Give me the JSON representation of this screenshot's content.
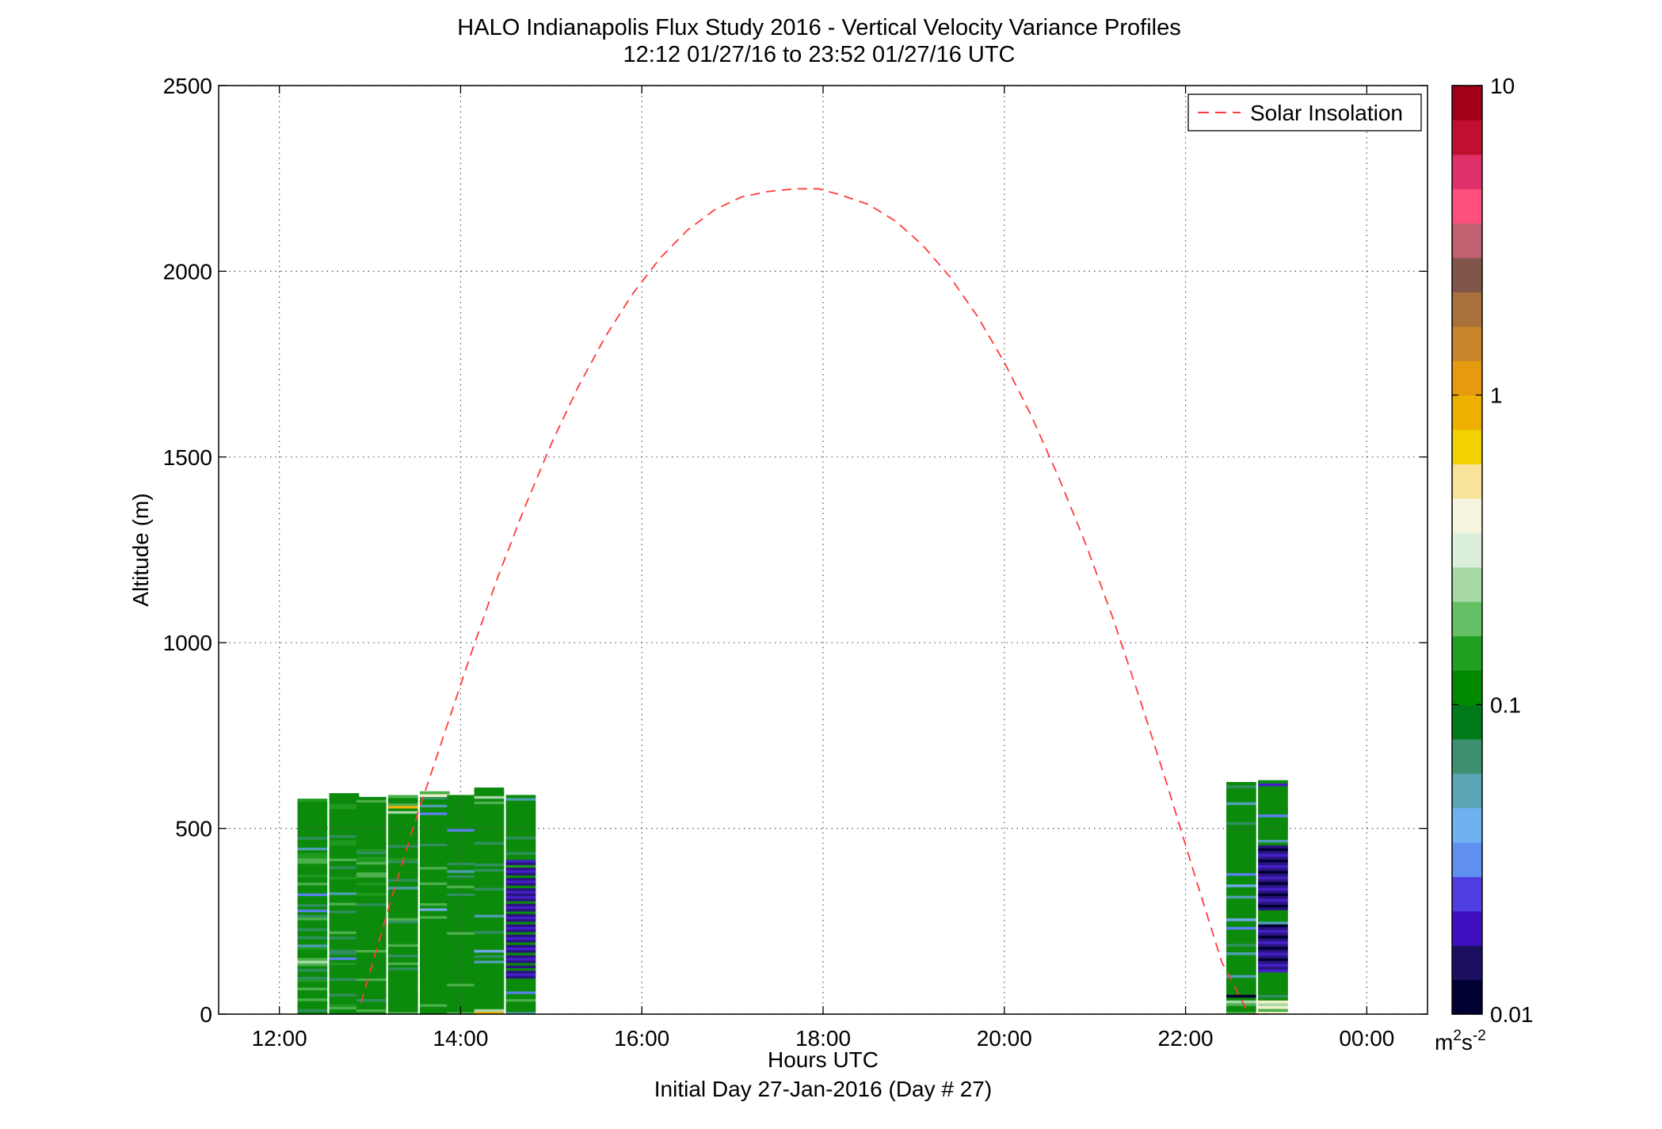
{
  "chart_data": {
    "type": "heatmap",
    "title": "HALO Indianapolis Flux Study 2016 - Vertical Velocity Variance Profiles",
    "subtitle": "12:12 01/27/16 to 23:52 01/27/16  UTC",
    "xlabel": "Hours UTC",
    "xlabel2": "Initial Day 27-Jan-2016 (Day # 27)",
    "ylabel": "Altitude (m)",
    "xlim": [
      11.33,
      24.67
    ],
    "ylim": [
      0,
      2500
    ],
    "x_ticks": [
      12,
      14,
      16,
      18,
      20,
      22,
      24
    ],
    "x_tick_labels": [
      "12:00",
      "14:00",
      "16:00",
      "18:00",
      "20:00",
      "22:00",
      "00:00"
    ],
    "y_ticks": [
      0,
      500,
      1000,
      1500,
      2000,
      2500
    ],
    "y_tick_labels": [
      "0",
      "500",
      "1000",
      "1500",
      "2000",
      "2500"
    ],
    "grid": true,
    "legend": {
      "position": "top-right",
      "entries": [
        "Solar Insolation"
      ]
    },
    "colorbar": {
      "scale": "log",
      "min": 0.01,
      "max": 10,
      "ticks": [
        0.01,
        0.1,
        1,
        10
      ],
      "tick_labels": [
        "0.01",
        "0.1",
        "1",
        "10"
      ],
      "unit": "m",
      "unit_sup1": "2",
      "unit_mid": "s",
      "unit_sup2": "-2",
      "colors": [
        "#000033",
        "#1b1060",
        "#3f10c0",
        "#4f3fe0",
        "#5f8ff0",
        "#6fb2f2",
        "#5aa5b5",
        "#3d8f70",
        "#007a1a",
        "#008a00",
        "#20a020",
        "#65bf65",
        "#a6d9a6",
        "#dcefdc",
        "#f5f5e0",
        "#f7e39a",
        "#f2d100",
        "#eeb000",
        "#e69a10",
        "#c8852a",
        "#a8703a",
        "#80564a",
        "#c06070",
        "#ff4f7f",
        "#e0306a",
        "#c01030",
        "#a00018"
      ]
    },
    "series": [
      {
        "name": "Solar Insolation",
        "style": "dashed",
        "color": "#ff3b3b",
        "x": [
          12.9,
          13.2,
          13.5,
          13.8,
          14.1,
          14.4,
          14.7,
          15.0,
          15.3,
          15.6,
          15.9,
          16.2,
          16.5,
          16.8,
          17.1,
          17.4,
          17.7,
          17.95,
          18.2,
          18.5,
          18.8,
          19.1,
          19.4,
          19.7,
          20.0,
          20.3,
          20.6,
          20.9,
          21.2,
          21.5,
          21.8,
          22.1,
          22.4,
          22.7,
          22.9
        ],
        "y": [
          30,
          280,
          520,
          740,
          960,
          1170,
          1360,
          1535,
          1690,
          1825,
          1940,
          2035,
          2110,
          2165,
          2200,
          2215,
          2222,
          2222,
          2205,
          2180,
          2135,
          2070,
          1985,
          1880,
          1755,
          1610,
          1445,
          1265,
          1065,
          845,
          615,
          375,
          140,
          0,
          0
        ]
      }
    ],
    "profiles": [
      {
        "time": 12.2,
        "top": 580,
        "codes": "b9bbbcbbbcbba9bb9bcdcbbba8bb9bb9bbbc9b6b9bbb6bbbcbbabbbbccaab8bbb9bbbbbbbbbbbbba"
      },
      {
        "time": 12.55,
        "top": 595,
        "codes": "bbcabbb9bbbbb9bbbbbab6b99bbbb9bcbbbbbbb9bbcbbb8bbbbbabbb9bbcbbbbbaab9bbbbbbbbbbaabbbb"
      },
      {
        "time": 12.85,
        "top": 585,
        "codes": "bcbbb9bbbbbbbcbbbbbbbbbbcbbbbbbbbbbbbbbbbb9bbbabbbabbccbbbcaab9abbbbbbbbbbbbbbbbbbcb"
      },
      {
        "time": 13.2,
        "top": 590,
        "codes": "cbbbbbbbbbbbbbbbb9bcbb9bbbcbbbbbbbb9cbbbbbbbbbbb8bb9bbbbbb9abbbb9bbbbbbbbbbbbdbfcbbc"
      },
      {
        "time": 13.55,
        "top": 600,
        "codes": "bbbcbbbbbbbbbbbbbbbbbbbbbbbbbbbbbbbbbcbb7bcbbbbbbbcbbbbbcbbbbbbbb9bbbbbbbbbbb6bb8bb9ec"
      },
      {
        "time": 13.85,
        "top": 590,
        "codes": "cbbbbbbbbbbcbbbbbbbbbbbbbbbbbbbcbbbbbbbbbbbbbb9bbcbbb9b8bb9bbbbbbbbbbbb6bbbbbbbbbbbbb"
      },
      {
        "time": 14.15,
        "top": 610,
        "codes": "fdbbbbbbbbbbbbbbbbb8b9b7bbbbbb9bbbbb8bbbbbbbbb9bbbbbb9b9bbbbbbb9bbbbbbbbbbbbbbcbdbbb"
      },
      {
        "time": 14.5,
        "top": 590,
        "codes": "8bbbbcbb6bbbbb1213131213121312131213121312131212131213121a12bb9bbbbb9bbbbbbbbbbbbbb8b"
      },
      {
        "time": 22.45,
        "top": 625,
        "codes": "cbbcdb0bbbbbb8bbbbbbb8bb9bbbbb6bb7bbbbbbb8bbb7bbb6bbbbbbbbbbbbbbbbb9bbbbbb8bbbbb9b"
      },
      {
        "time": 22.8,
        "top": 630,
        "codes": "ecedeb9bbbbbbbb212101210121012108bbbb10121012101210121012101b8bbbbbbbb6bbbbbbbbbb2b"
      }
    ]
  }
}
